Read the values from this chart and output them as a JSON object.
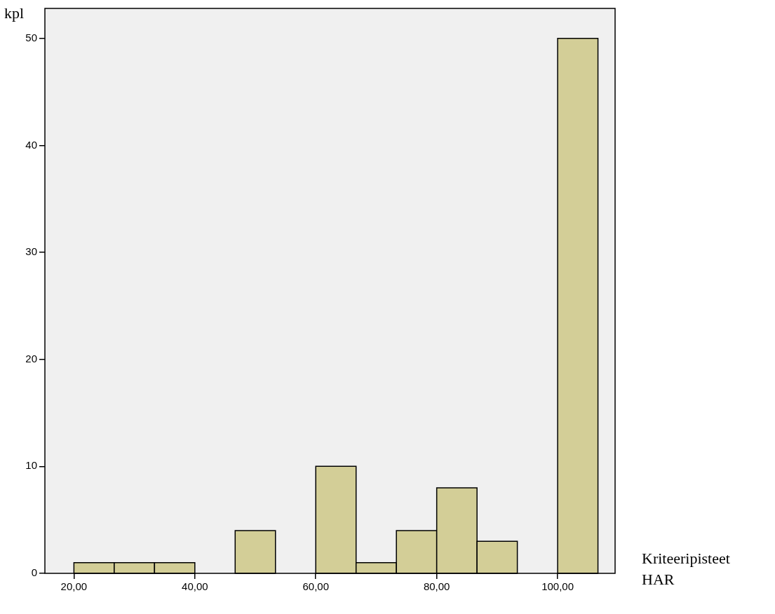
{
  "chart_data": {
    "type": "histogram",
    "bins": [
      20,
      26.667,
      33.333,
      40,
      46.667,
      53.333,
      60,
      66.667,
      73.333,
      80,
      86.667,
      93.333,
      100,
      106.667
    ],
    "values": [
      1,
      1,
      1,
      0,
      4,
      0,
      10,
      1,
      4,
      8,
      3,
      0,
      50
    ],
    "color": "#d3ce97",
    "xlim": [
      15.2,
      109.5
    ],
    "ylim": [
      0,
      52.8
    ],
    "xticks": [
      {
        "value": 20,
        "label": "20,00"
      },
      {
        "value": 40,
        "label": "40,00"
      },
      {
        "value": 60,
        "label": "60,00"
      },
      {
        "value": 80,
        "label": "80,00"
      },
      {
        "value": 100,
        "label": "100,00"
      }
    ],
    "yticks": [
      0,
      10,
      20,
      30,
      40,
      50
    ],
    "xlabel": "Kriteeripisteet HAR",
    "ylabel": "kpl",
    "grid": false,
    "legend": false
  }
}
